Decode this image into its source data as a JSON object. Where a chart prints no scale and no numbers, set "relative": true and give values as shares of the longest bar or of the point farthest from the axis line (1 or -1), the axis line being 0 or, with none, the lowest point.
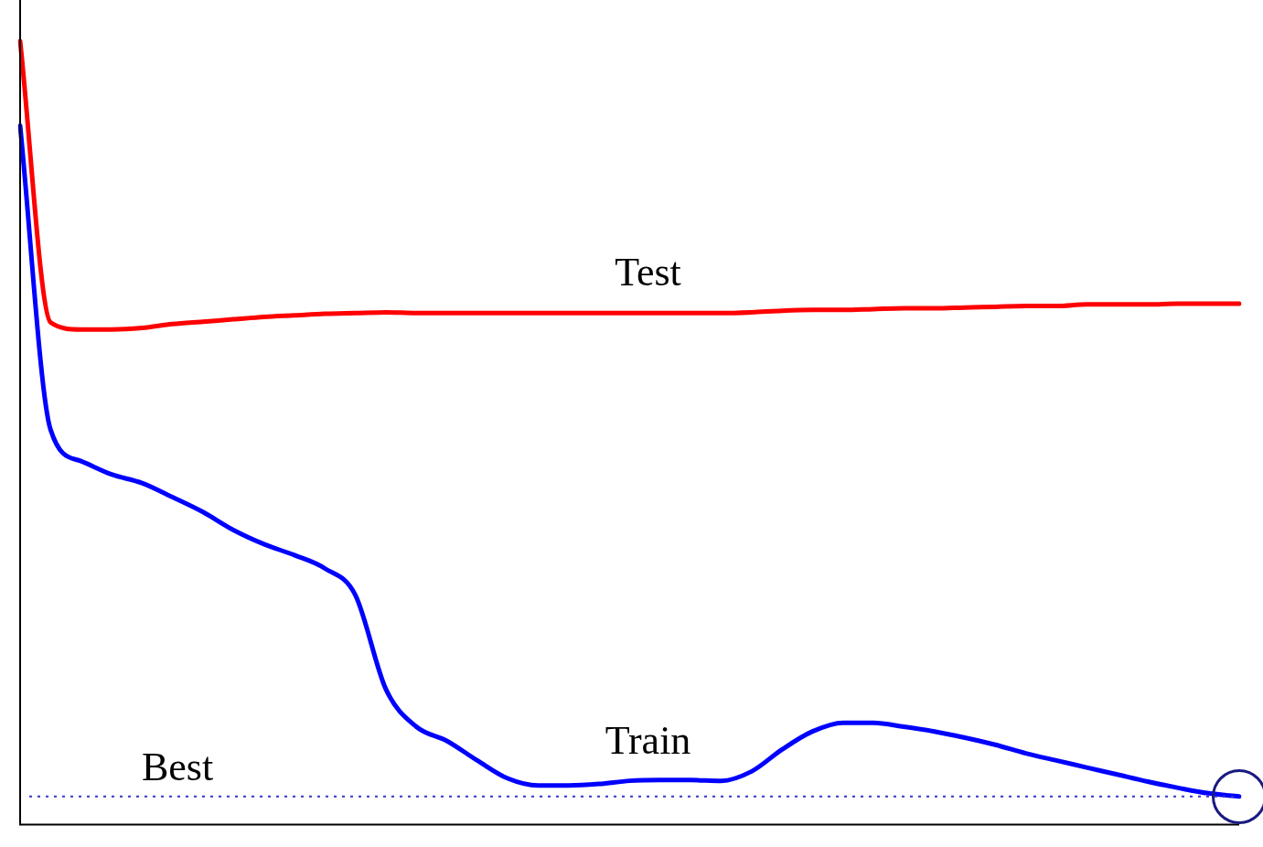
{
  "chart_data": {
    "type": "line",
    "relative": true,
    "grid": false,
    "legend": false,
    "marker": "none",
    "line_style": "solid",
    "categories": [
      null,
      null,
      null,
      null,
      null,
      null,
      null,
      null,
      null,
      null,
      null,
      null,
      null,
      null,
      null,
      null,
      null,
      null,
      null,
      null,
      null,
      null,
      null,
      null,
      null,
      null,
      null,
      null,
      null,
      null,
      null,
      null,
      null,
      null,
      null,
      null,
      null,
      null,
      null,
      null,
      null
    ],
    "series": [
      {
        "name": "Test",
        "color": "#ff0000",
        "values": [
          1,
          0.641,
          0.632,
          0.632,
          0.634,
          0.639,
          0.642,
          0.645,
          0.648,
          0.65,
          0.652,
          0.653,
          0.654,
          0.653,
          0.653,
          0.653,
          0.653,
          0.653,
          0.653,
          0.653,
          0.653,
          0.653,
          0.653,
          0.653,
          0.654,
          0.656,
          0.657,
          0.657,
          0.658,
          0.659,
          0.659,
          0.66,
          0.661,
          0.662,
          0.662,
          0.664,
          0.664,
          0.664,
          0.665,
          0.665,
          0.665
        ]
      },
      {
        "name": "Train",
        "color": "#0000ff",
        "values": [
          0.892,
          0.504,
          0.464,
          0.447,
          0.436,
          0.418,
          0.399,
          0.376,
          0.358,
          0.344,
          0.327,
          0.293,
          0.173,
          0.125,
          0.107,
          0.082,
          0.059,
          0.05,
          0.05,
          0.052,
          0.056,
          0.057,
          0.057,
          0.056,
          0.068,
          0.096,
          0.119,
          0.13,
          0.13,
          0.125,
          0.119,
          0.111,
          0.102,
          0.091,
          0.082,
          0.073,
          0.064,
          0.055,
          0.047,
          0.04,
          0.036
        ]
      }
    ],
    "ref_lines": [
      {
        "axis": "y",
        "value": 0.036,
        "label": "Best",
        "color": "#3333cc",
        "line_style": "dotted"
      }
    ]
  }
}
